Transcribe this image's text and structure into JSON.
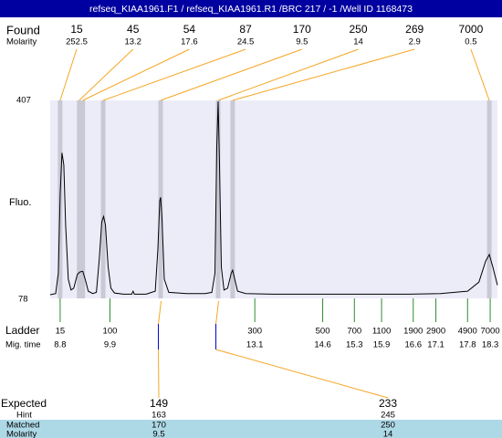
{
  "title": "refseq_KIAA1961.F1 / refseq_KIAA1961.R1 /BRC 217 / -1 /Well ID 1168473",
  "found": {
    "label": "Found",
    "sub_label": "Molarity",
    "peaks": [
      {
        "size": 15,
        "molarity": 252.5,
        "mig_time": 8.8
      },
      {
        "size": 45,
        "molarity": 13.2,
        "mig_time": 9.22
      },
      {
        "size": 54,
        "molarity": 17.6,
        "mig_time": 9.3
      },
      {
        "size": 87,
        "molarity": 24.5,
        "mig_time": 9.75
      },
      {
        "size": 170,
        "molarity": 9.5,
        "mig_time": 11.02
      },
      {
        "size": 250,
        "molarity": 14,
        "mig_time": 12.29
      },
      {
        "size": 269,
        "molarity": 2.9,
        "mig_time": 12.61
      },
      {
        "size": 7000,
        "molarity": 0.5,
        "mig_time": 18.28
      }
    ]
  },
  "chart_data": {
    "type": "line",
    "ylabel": "Fluo.",
    "color": "#000000",
    "ylim": [
      78,
      407
    ],
    "yticks": [
      78,
      407
    ],
    "xlim": [
      8.58,
      18.46
    ],
    "x": [
      8.58,
      8.7,
      8.76,
      8.8,
      8.84,
      8.88,
      8.92,
      8.98,
      9.04,
      9.1,
      9.18,
      9.24,
      9.3,
      9.36,
      9.42,
      9.52,
      9.6,
      9.66,
      9.72,
      9.76,
      9.8,
      9.86,
      9.92,
      10.0,
      10.2,
      10.38,
      10.41,
      10.44,
      10.7,
      10.9,
      10.96,
      11.0,
      11.02,
      11.05,
      11.1,
      11.2,
      11.6,
      12.0,
      12.15,
      12.22,
      12.26,
      12.29,
      12.32,
      12.36,
      12.42,
      12.5,
      12.58,
      12.61,
      12.64,
      12.72,
      12.9,
      13.5,
      14.5,
      15.5,
      16.5,
      17.2,
      17.8,
      18.05,
      18.2,
      18.28,
      18.36,
      18.46
    ],
    "values": [
      84,
      86,
      120,
      250,
      320,
      300,
      200,
      110,
      92,
      95,
      118,
      122,
      123,
      108,
      90,
      86,
      88,
      140,
      205,
      214,
      200,
      130,
      95,
      87,
      85,
      85,
      90,
      85,
      85,
      90,
      160,
      240,
      246,
      210,
      110,
      88,
      86,
      86,
      88,
      120,
      330,
      405,
      300,
      130,
      92,
      95,
      120,
      125,
      115,
      90,
      86,
      85,
      85,
      85,
      85,
      86,
      90,
      105,
      140,
      151,
      130,
      100
    ]
  },
  "ladder": {
    "label": "Ladder",
    "sub_label": "Mig. time",
    "entries": [
      {
        "size": 15,
        "mig_time": 8.8
      },
      {
        "size": 100,
        "mig_time": 9.9
      },
      {
        "size": 300,
        "mig_time": 13.1
      },
      {
        "size": 500,
        "mig_time": 14.6
      },
      {
        "size": 700,
        "mig_time": 15.3
      },
      {
        "size": 1100,
        "mig_time": 15.9
      },
      {
        "size": 1900,
        "mig_time": 16.6
      },
      {
        "size": 2900,
        "mig_time": 17.1
      },
      {
        "size": 4900,
        "mig_time": 17.8
      },
      {
        "size": 7000,
        "mig_time": 18.3
      }
    ]
  },
  "expected": {
    "label": "Expected",
    "hint_label": "Hint",
    "matched_label": "Matched",
    "molarity_label": "Molarity",
    "items": [
      {
        "size": 149,
        "hint": 163,
        "matched": 170,
        "molarity": 9.5,
        "mig_time": 10.97
      },
      {
        "size": 233,
        "hint": 245,
        "matched": 250,
        "molarity": 14,
        "mig_time": 12.24
      }
    ]
  }
}
